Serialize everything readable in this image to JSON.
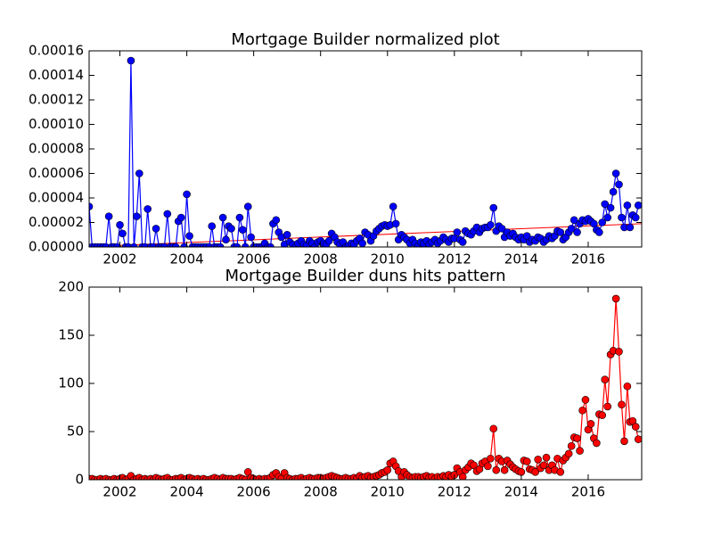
{
  "chart_data": [
    {
      "type": "line",
      "title": "Mortgage Builder normalized plot",
      "color": "#0000ff",
      "marker": true,
      "grid": false,
      "x": [
        2001.08,
        2001.17,
        2001.25,
        2001.33,
        2001.42,
        2001.5,
        2001.58,
        2001.67,
        2001.75,
        2001.83,
        2001.92,
        2002,
        2002.08,
        2002.17,
        2002.25,
        2002.33,
        2002.42,
        2002.5,
        2002.58,
        2002.67,
        2002.75,
        2002.83,
        2002.92,
        2003,
        2003.08,
        2003.17,
        2003.25,
        2003.33,
        2003.42,
        2003.5,
        2003.58,
        2003.67,
        2003.75,
        2003.83,
        2003.92,
        2004,
        2004.08,
        2004.17,
        2004.25,
        2004.33,
        2004.42,
        2004.5,
        2004.58,
        2004.67,
        2004.75,
        2004.83,
        2004.92,
        2005,
        2005.08,
        2005.17,
        2005.25,
        2005.33,
        2005.42,
        2005.5,
        2005.58,
        2005.67,
        2005.75,
        2005.83,
        2005.92,
        2006,
        2006.08,
        2006.17,
        2006.25,
        2006.33,
        2006.42,
        2006.5,
        2006.58,
        2006.67,
        2006.75,
        2006.83,
        2006.92,
        2007,
        2007.08,
        2007.17,
        2007.25,
        2007.33,
        2007.42,
        2007.5,
        2007.58,
        2007.67,
        2007.75,
        2007.83,
        2007.92,
        2008,
        2008.08,
        2008.17,
        2008.25,
        2008.33,
        2008.42,
        2008.5,
        2008.58,
        2008.67,
        2008.75,
        2008.83,
        2008.92,
        2009,
        2009.08,
        2009.17,
        2009.25,
        2009.33,
        2009.42,
        2009.5,
        2009.58,
        2009.67,
        2009.75,
        2009.83,
        2009.92,
        2010,
        2010.08,
        2010.17,
        2010.25,
        2010.33,
        2010.42,
        2010.5,
        2010.58,
        2010.67,
        2010.75,
        2010.83,
        2010.92,
        2011,
        2011.08,
        2011.17,
        2011.25,
        2011.33,
        2011.42,
        2011.5,
        2011.58,
        2011.67,
        2011.75,
        2011.83,
        2011.92,
        2012,
        2012.08,
        2012.17,
        2012.25,
        2012.33,
        2012.42,
        2012.5,
        2012.58,
        2012.67,
        2012.75,
        2012.83,
        2012.92,
        2013,
        2013.08,
        2013.17,
        2013.25,
        2013.33,
        2013.42,
        2013.5,
        2013.58,
        2013.67,
        2013.75,
        2013.83,
        2013.92,
        2014,
        2014.08,
        2014.17,
        2014.25,
        2014.33,
        2014.42,
        2014.5,
        2014.58,
        2014.67,
        2014.75,
        2014.83,
        2014.92,
        2015,
        2015.08,
        2015.17,
        2015.25,
        2015.33,
        2015.42,
        2015.5,
        2015.58,
        2015.67,
        2015.75,
        2015.83,
        2015.92,
        2016,
        2016.08,
        2016.17,
        2016.25,
        2016.33,
        2016.42,
        2016.5,
        2016.58,
        2016.67,
        2016.75,
        2016.83,
        2016.92,
        2017,
        2017.08,
        2017.17,
        2017.25,
        2017.33,
        2017.42,
        2017.5
      ],
      "values": [
        3.3e-05,
        0,
        0,
        0,
        0,
        0,
        0,
        2.5e-05,
        0,
        0,
        0,
        1.8e-05,
        1.1e-05,
        0,
        0,
        0.000152,
        0,
        2.5e-05,
        6e-05,
        0,
        0,
        3.1e-05,
        0,
        0,
        1.5e-05,
        0,
        0,
        0,
        2.7e-05,
        0,
        0,
        0,
        2.1e-05,
        2.4e-05,
        0,
        4.3e-05,
        9e-06,
        0,
        0,
        0,
        0,
        0,
        0,
        0,
        1.7e-05,
        0,
        0,
        0,
        2.4e-05,
        6e-06,
        1.7e-05,
        1.5e-05,
        0,
        0,
        2.4e-05,
        1.4e-05,
        0,
        3.3e-05,
        8e-06,
        0,
        0,
        0,
        0,
        3e-06,
        0,
        0,
        1.9e-05,
        2.2e-05,
        1.2e-05,
        8e-06,
        2e-06,
        1e-05,
        4e-06,
        2e-06,
        0,
        3e-06,
        5e-06,
        2e-06,
        1e-06,
        5e-06,
        3e-06,
        0,
        4e-06,
        5e-06,
        3e-06,
        2e-06,
        5e-06,
        1.1e-05,
        8e-06,
        4e-06,
        2e-06,
        4e-06,
        0,
        1e-06,
        3e-06,
        2e-06,
        5e-06,
        7e-06,
        3e-06,
        1.2e-05,
        1e-05,
        5e-06,
        9e-06,
        1.3e-05,
        1.5e-05,
        1.7e-05,
        1.8e-05,
        1.7e-05,
        1.8e-05,
        3.3e-05,
        1.9e-05,
        6e-06,
        1e-05,
        8e-06,
        6e-06,
        3e-06,
        6e-06,
        3e-06,
        1e-06,
        4e-06,
        3e-06,
        5e-06,
        2e-06,
        4e-06,
        6e-06,
        3e-06,
        5e-06,
        8e-06,
        6e-06,
        4e-06,
        7e-06,
        7e-06,
        1.2e-05,
        6e-06,
        4e-06,
        1.3e-05,
        1.1e-05,
        1e-05,
        1.3e-05,
        1.6e-05,
        1.2e-05,
        1.5e-05,
        1.6e-05,
        1.6e-05,
        1.8e-05,
        3.2e-05,
        1.3e-05,
        1.7e-05,
        1.5e-05,
        8e-06,
        1.2e-05,
        9e-06,
        1.1e-05,
        8e-06,
        6e-06,
        8e-06,
        6e-06,
        9e-06,
        4e-06,
        6e-06,
        5e-06,
        8e-06,
        7e-06,
        4e-06,
        6e-06,
        9e-06,
        7e-06,
        9e-06,
        1.3e-05,
        1.2e-05,
        6e-06,
        8e-06,
        1.2e-05,
        1.5e-05,
        2.2e-05,
        1.2e-05,
        1.9e-05,
        2.2e-05,
        2.1e-05,
        2.3e-05,
        2.1e-05,
        1.9e-05,
        1.4e-05,
        1.2e-05,
        2e-05,
        3.5e-05,
        2.4e-05,
        3.2e-05,
        4.5e-05,
        6e-05,
        5.1e-05,
        2.4e-05,
        1.6e-05,
        3.4e-05,
        1.6e-05,
        2.6e-05,
        2.4e-05,
        3.4e-05
      ],
      "trend_line": {
        "color": "#ff0000",
        "x": [
          2001.08,
          2017.6
        ],
        "values": [
          3e-07,
          1.9e-05
        ]
      },
      "xlim": [
        2001.08,
        2017.6
      ],
      "xticks": [
        2002,
        2004,
        2006,
        2008,
        2010,
        2012,
        2014,
        2016
      ],
      "ylim": [
        0,
        0.00016
      ],
      "yticks": [
        {
          "value": 0,
          "label": "0.00000"
        },
        {
          "value": 2e-05,
          "label": "0.00002"
        },
        {
          "value": 4e-05,
          "label": "0.00004"
        },
        {
          "value": 6e-05,
          "label": "0.00006"
        },
        {
          "value": 8e-05,
          "label": "0.00008"
        },
        {
          "value": 0.0001,
          "label": "0.00010"
        },
        {
          "value": 0.00012,
          "label": "0.00012"
        },
        {
          "value": 0.00014,
          "label": "0.00014"
        },
        {
          "value": 0.00016,
          "label": "0.00016"
        }
      ]
    },
    {
      "type": "line",
      "title": "Mortgage Builder duns hits pattern",
      "color": "#ff0000",
      "marker": true,
      "grid": false,
      "x": [
        2001.08,
        2001.17,
        2001.25,
        2001.33,
        2001.42,
        2001.5,
        2001.58,
        2001.67,
        2001.75,
        2001.83,
        2001.92,
        2002,
        2002.08,
        2002.17,
        2002.25,
        2002.33,
        2002.42,
        2002.5,
        2002.58,
        2002.67,
        2002.75,
        2002.83,
        2002.92,
        2003,
        2003.08,
        2003.17,
        2003.25,
        2003.33,
        2003.42,
        2003.5,
        2003.58,
        2003.67,
        2003.75,
        2003.83,
        2003.92,
        2004,
        2004.08,
        2004.17,
        2004.25,
        2004.33,
        2004.42,
        2004.5,
        2004.58,
        2004.67,
        2004.75,
        2004.83,
        2004.92,
        2005,
        2005.08,
        2005.17,
        2005.25,
        2005.33,
        2005.42,
        2005.5,
        2005.58,
        2005.67,
        2005.75,
        2005.83,
        2005.92,
        2006,
        2006.08,
        2006.17,
        2006.25,
        2006.33,
        2006.42,
        2006.5,
        2006.58,
        2006.67,
        2006.75,
        2006.83,
        2006.92,
        2007,
        2007.08,
        2007.17,
        2007.25,
        2007.33,
        2007.42,
        2007.5,
        2007.58,
        2007.67,
        2007.75,
        2007.83,
        2007.92,
        2008,
        2008.08,
        2008.17,
        2008.25,
        2008.33,
        2008.42,
        2008.5,
        2008.58,
        2008.67,
        2008.75,
        2008.83,
        2008.92,
        2009,
        2009.08,
        2009.17,
        2009.25,
        2009.33,
        2009.42,
        2009.5,
        2009.58,
        2009.67,
        2009.75,
        2009.83,
        2009.92,
        2010,
        2010.08,
        2010.17,
        2010.25,
        2010.33,
        2010.42,
        2010.5,
        2010.58,
        2010.67,
        2010.75,
        2010.83,
        2010.92,
        2011,
        2011.08,
        2011.17,
        2011.25,
        2011.33,
        2011.42,
        2011.5,
        2011.58,
        2011.67,
        2011.75,
        2011.83,
        2011.92,
        2012,
        2012.08,
        2012.17,
        2012.25,
        2012.33,
        2012.42,
        2012.5,
        2012.58,
        2012.67,
        2012.75,
        2012.83,
        2012.92,
        2013,
        2013.08,
        2013.17,
        2013.25,
        2013.33,
        2013.42,
        2013.5,
        2013.58,
        2013.67,
        2013.75,
        2013.83,
        2013.92,
        2014,
        2014.08,
        2014.17,
        2014.25,
        2014.33,
        2014.42,
        2014.5,
        2014.58,
        2014.67,
        2014.75,
        2014.83,
        2014.92,
        2015,
        2015.08,
        2015.17,
        2015.25,
        2015.33,
        2015.42,
        2015.5,
        2015.58,
        2015.67,
        2015.75,
        2015.83,
        2015.92,
        2016,
        2016.08,
        2016.17,
        2016.25,
        2016.33,
        2016.42,
        2016.5,
        2016.58,
        2016.67,
        2016.75,
        2016.83,
        2016.92,
        2017,
        2017.08,
        2017.17,
        2017.25,
        2017.33,
        2017.42,
        2017.5
      ],
      "values": [
        1,
        1,
        0,
        0,
        1,
        0,
        1,
        0,
        0,
        1,
        0,
        1,
        2,
        0,
        1,
        4,
        0,
        1,
        2,
        0,
        1,
        0,
        1,
        0,
        2,
        1,
        0,
        1,
        2,
        0,
        0,
        1,
        1,
        2,
        0,
        1,
        2,
        1,
        0,
        1,
        0,
        1,
        0,
        0,
        1,
        2,
        1,
        0,
        2,
        1,
        1,
        1,
        0,
        1,
        2,
        1,
        0,
        8,
        2,
        1,
        0,
        1,
        0,
        1,
        1,
        2,
        5,
        7,
        3,
        1,
        7,
        2,
        1,
        0,
        1,
        1,
        2,
        0,
        1,
        2,
        1,
        1,
        2,
        2,
        1,
        2,
        3,
        4,
        3,
        2,
        1,
        1,
        2,
        1,
        1,
        2,
        1,
        4,
        2,
        3,
        4,
        2,
        3,
        4,
        5,
        7,
        8,
        10,
        17,
        19,
        14,
        9,
        3,
        8,
        5,
        3,
        2,
        3,
        3,
        2,
        3,
        4,
        2,
        3,
        1,
        3,
        2,
        4,
        3,
        5,
        3,
        5,
        12,
        8,
        3,
        10,
        13,
        17,
        15,
        9,
        11,
        17,
        19,
        14,
        22,
        53,
        10,
        22,
        19,
        10,
        20,
        16,
        13,
        11,
        9,
        8,
        20,
        19,
        11,
        10,
        8,
        21,
        12,
        15,
        23,
        10,
        15,
        10,
        22,
        8,
        20,
        23,
        27,
        35,
        44,
        43,
        30,
        72,
        83,
        52,
        58,
        43,
        38,
        68,
        67,
        104,
        76,
        130,
        134,
        188,
        133,
        78,
        40,
        97,
        60,
        61,
        55,
        42
      ],
      "xlim": [
        2001.08,
        2017.6
      ],
      "xticks": [
        2002,
        2004,
        2006,
        2008,
        2010,
        2012,
        2014,
        2016
      ],
      "ylim": [
        0,
        200
      ],
      "yticks": [
        0,
        50,
        100,
        150,
        200
      ]
    }
  ]
}
